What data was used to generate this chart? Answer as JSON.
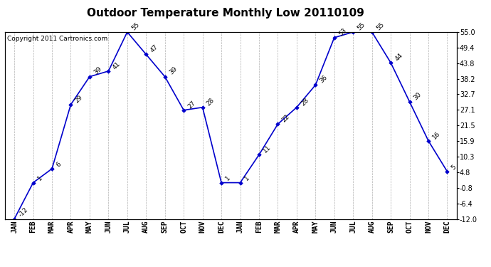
{
  "title": "Outdoor Temperature Monthly Low 20110109",
  "copyright_text": "Copyright 2011 Cartronics.com",
  "months": [
    "JAN",
    "FEB",
    "MAR",
    "APR",
    "MAY",
    "JUN",
    "JUL",
    "AUG",
    "SEP",
    "OCT",
    "NOV",
    "DEC",
    "JAN",
    "FEB",
    "MAR",
    "APR",
    "MAY",
    "JUN",
    "JUL",
    "AUG",
    "SEP",
    "OCT",
    "NOV",
    "DEC"
  ],
  "values": [
    -12,
    1,
    6,
    29,
    39,
    41,
    55,
    47,
    39,
    27,
    28,
    1,
    1,
    11,
    22,
    28,
    36,
    53,
    55,
    55,
    44,
    30,
    16,
    5
  ],
  "ylim": [
    -12.0,
    55.0
  ],
  "yticks": [
    -12.0,
    -6.4,
    -0.8,
    4.8,
    10.3,
    15.9,
    21.5,
    27.1,
    32.7,
    38.2,
    43.8,
    49.4,
    55.0
  ],
  "line_color": "#0000cc",
  "marker_color": "#0000cc",
  "bg_color": "#ffffff",
  "grid_color": "#b0b0b0",
  "title_fontsize": 11,
  "copyright_fontsize": 6.5,
  "annotation_fontsize": 6.5,
  "tick_fontsize": 7
}
